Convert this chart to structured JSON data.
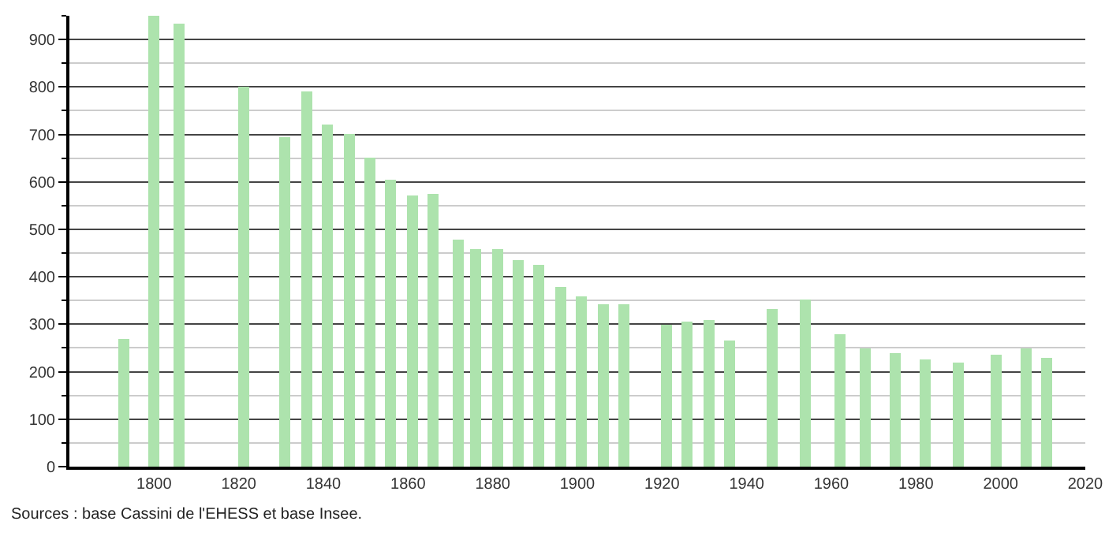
{
  "chart_data": {
    "type": "bar",
    "x": [
      1793,
      1800,
      1806,
      1821,
      1831,
      1836,
      1841,
      1846,
      1851,
      1856,
      1861,
      1866,
      1872,
      1876,
      1881,
      1886,
      1891,
      1896,
      1901,
      1906,
      1911,
      1921,
      1926,
      1931,
      1936,
      1946,
      1954,
      1962,
      1968,
      1975,
      1982,
      1990,
      1999,
      2006,
      2011
    ],
    "values": [
      270,
      950,
      935,
      800,
      693,
      792,
      720,
      700,
      650,
      605,
      572,
      575,
      477,
      457,
      457,
      435,
      425,
      380,
      358,
      342,
      342,
      300,
      305,
      310,
      265,
      332,
      353,
      280,
      250,
      240,
      227,
      220,
      235,
      248,
      230
    ],
    "color": "#ade3ad",
    "xlim": [
      1780,
      2020
    ],
    "xticks": [
      1800,
      1820,
      1840,
      1860,
      1880,
      1900,
      1920,
      1940,
      1960,
      1980,
      2000,
      2020
    ],
    "ylim": [
      0,
      950
    ],
    "yticks": [
      0,
      100,
      200,
      300,
      400,
      500,
      600,
      700,
      800,
      900
    ],
    "grid": "y",
    "annotations": [
      "Sources : base Cassini de l'EHESS et base Insee."
    ]
  }
}
